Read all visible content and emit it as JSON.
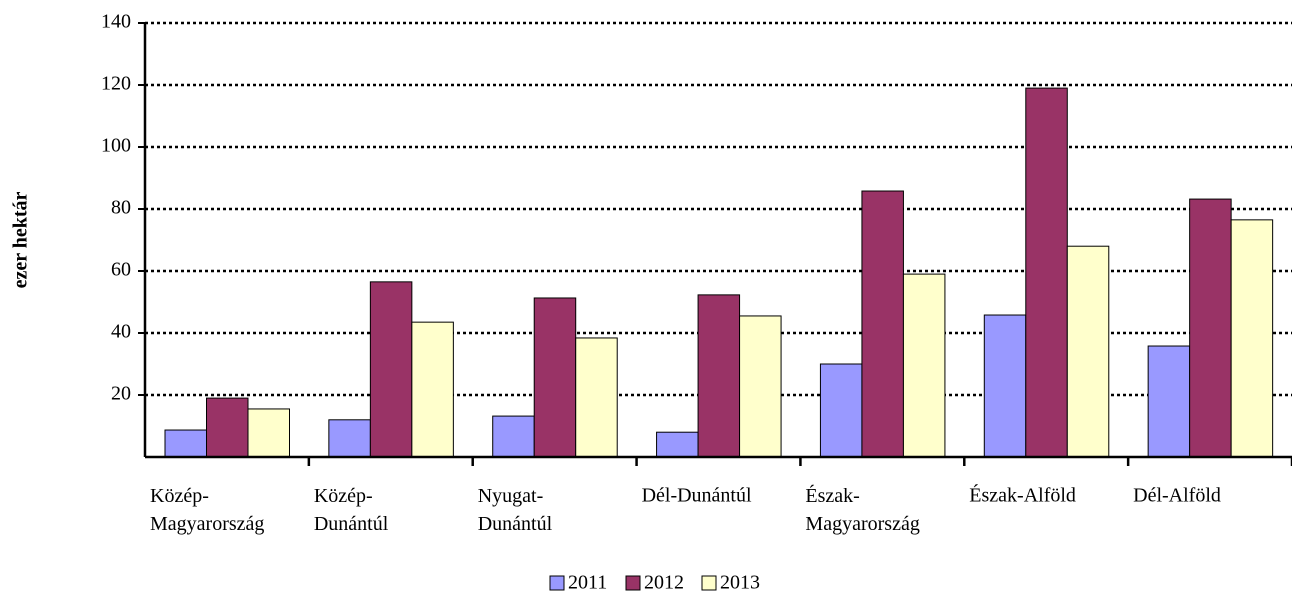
{
  "chart_data": {
    "type": "bar",
    "y_label": "ezer hektár",
    "categories": [
      "Közép-\nMagyarország",
      "Közép-\nDunántúl",
      "Nyugat-\nDunántúl",
      "Dél-Dunántúl",
      "Észak-\nMagyarország",
      "Észak-Alföld",
      "Dél-Alföld"
    ],
    "series": [
      {
        "name": "2011",
        "color": "#9999ff",
        "values": [
          8.7,
          12,
          13.2,
          8,
          30,
          45.8,
          35.8
        ]
      },
      {
        "name": "2012",
        "color": "#993366",
        "values": [
          19,
          56.5,
          51.3,
          52.3,
          85.8,
          119,
          83.2
        ]
      },
      {
        "name": "2013",
        "color": "#ffffcc",
        "values": [
          15.5,
          43.5,
          38.4,
          45.5,
          59,
          68,
          76.5
        ]
      }
    ],
    "ylim": [
      0,
      140
    ],
    "yticks": [
      20,
      40,
      60,
      80,
      100,
      120,
      140
    ],
    "grid": true,
    "legend": "bottom"
  }
}
